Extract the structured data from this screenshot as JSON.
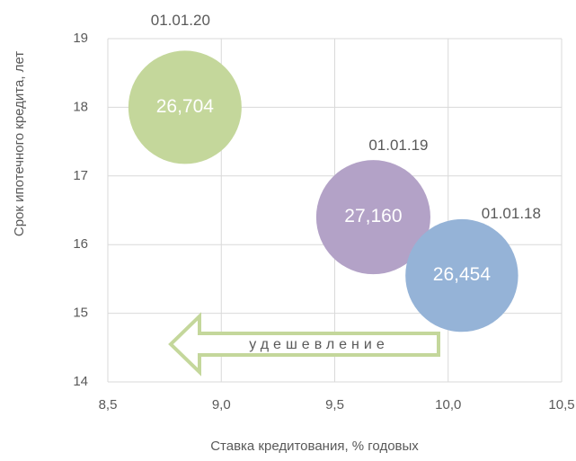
{
  "chart_data": {
    "type": "bubble",
    "x_label": "Ставка кредитования, % годовых",
    "y_label": "Срок ипотечного кредита, лет",
    "x": [
      8.84,
      9.67,
      10.06
    ],
    "values": [
      18.0,
      16.4,
      15.55
    ],
    "sizes": [
      26.704,
      27.16,
      26.454
    ],
    "size_labels": [
      "26,704",
      "27,160",
      "26,454"
    ],
    "point_labels": [
      "01.01.20",
      "01.01.19",
      "01.01.18"
    ],
    "colors": [
      "#c4d79b",
      "#b3a2c7",
      "#95b3d7"
    ],
    "xlim": [
      8.5,
      10.5
    ],
    "xticks": [
      {
        "value": 8.5,
        "label": "8,5"
      },
      {
        "value": 9.0,
        "label": "9,0"
      },
      {
        "value": 9.5,
        "label": "9,5"
      },
      {
        "value": 10.0,
        "label": "10,0"
      },
      {
        "value": 10.5,
        "label": "10,5"
      }
    ],
    "ylim": [
      14,
      19
    ],
    "yticks": [
      14,
      15,
      16,
      17,
      18,
      19
    ],
    "grid": true,
    "annotation": "удешевление"
  }
}
